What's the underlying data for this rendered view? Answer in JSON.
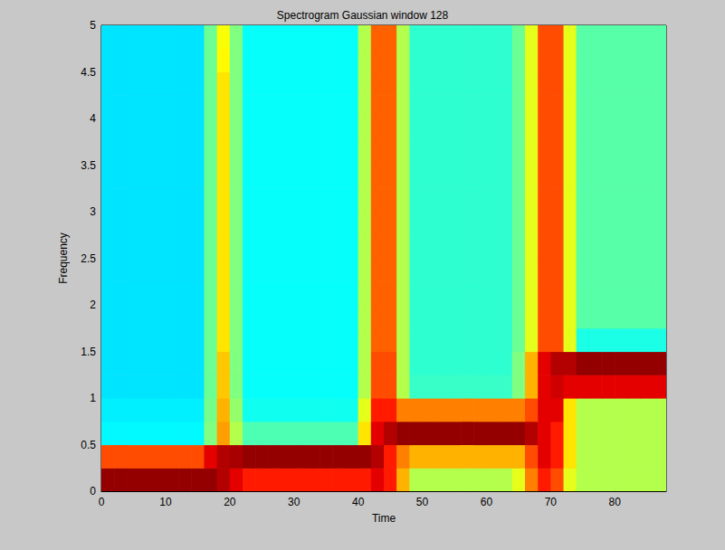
{
  "chart_data": {
    "type": "heatmap",
    "title": "Spectrogram Gaussian window 128",
    "xlabel": "Time",
    "ylabel": "Frequency",
    "x": [
      1,
      3,
      5,
      7,
      9,
      11,
      13,
      15,
      17,
      19,
      21,
      23,
      25,
      27,
      29,
      31,
      33,
      35,
      37,
      39,
      41,
      43,
      45,
      47,
      49,
      51,
      53,
      55,
      57,
      59,
      61,
      63,
      65,
      67,
      69,
      71,
      73,
      75,
      77,
      79,
      81,
      83,
      85,
      87
    ],
    "y": [
      0.125,
      0.375,
      0.625,
      0.875,
      1.125,
      1.375,
      1.625,
      1.875,
      2.125,
      2.375,
      2.625,
      2.875,
      3.125,
      3.375,
      3.625,
      3.875,
      4.125,
      4.375,
      4.625,
      4.875
    ],
    "z": [
      [
        9.8,
        9.8,
        9.8,
        9.8,
        9.8,
        9.8,
        9.8,
        9.8,
        9.8,
        9.5,
        9,
        8.5,
        8.5,
        8.5,
        8.5,
        8.5,
        8.5,
        8.5,
        8.5,
        8.5,
        8.5,
        9,
        8.5,
        7,
        5.5,
        5.5,
        5.5,
        5.5,
        5.5,
        5.5,
        5.5,
        5.5,
        6,
        7.5,
        8.5,
        8,
        6,
        5.5,
        5.5,
        5.5,
        5.5,
        5.5,
        5.5,
        5.5
      ],
      [
        8,
        8,
        8,
        8,
        8,
        8,
        8,
        8,
        9,
        9.5,
        9.6,
        9.8,
        9.8,
        9.8,
        9.8,
        9.8,
        9.8,
        9.8,
        9.8,
        9.8,
        9.8,
        9.5,
        8.5,
        7.5,
        7,
        7,
        7,
        7,
        7,
        7,
        7,
        7,
        7,
        8,
        9,
        8.5,
        6.5,
        5.5,
        5.5,
        5.5,
        5.5,
        5.5,
        5.5,
        5.5
      ],
      [
        3.7,
        3.7,
        3.7,
        3.7,
        3.7,
        3.7,
        3.7,
        3.7,
        5,
        7.2,
        5.5,
        4.5,
        4.5,
        4.5,
        4.5,
        4.5,
        4.5,
        4.5,
        4.5,
        4.5,
        6.5,
        9,
        9.5,
        9.8,
        9.8,
        9.8,
        9.8,
        9.8,
        9.8,
        9.8,
        9.8,
        9.8,
        9.8,
        9.5,
        9,
        8.5,
        6.5,
        5.5,
        5.5,
        5.5,
        5.5,
        5.5,
        5.5,
        5.5
      ],
      [
        3.6,
        3.6,
        3.6,
        3.6,
        3.6,
        3.6,
        3.6,
        3.6,
        4.9,
        7,
        5.2,
        3.9,
        3.9,
        3.9,
        3.9,
        3.9,
        3.9,
        3.9,
        3.9,
        3.9,
        6,
        8.5,
        8.5,
        7.5,
        7.5,
        7.5,
        7.5,
        7.5,
        7.5,
        7.5,
        7.5,
        7.5,
        7.5,
        8,
        9,
        9,
        6.5,
        5.5,
        5.5,
        5.5,
        5.5,
        5.5,
        5.5,
        5.5
      ],
      [
        3.5,
        3.5,
        3.5,
        3.5,
        3.5,
        3.5,
        3.5,
        3.5,
        4.8,
        6.8,
        5,
        3.8,
        3.8,
        3.8,
        3.8,
        3.8,
        3.8,
        3.8,
        3.8,
        3.8,
        5.5,
        8,
        8,
        5.5,
        4.3,
        4.3,
        4.3,
        4.3,
        4.3,
        4.3,
        4.3,
        4.3,
        5,
        7,
        9,
        9.2,
        9,
        9,
        9,
        9,
        9,
        9,
        9,
        9
      ],
      [
        3.5,
        3.5,
        3.5,
        3.5,
        3.5,
        3.5,
        3.5,
        3.5,
        4.8,
        6.8,
        5,
        3.8,
        3.8,
        3.8,
        3.8,
        3.8,
        3.8,
        3.8,
        3.8,
        3.8,
        5.5,
        8,
        8,
        5.5,
        4.2,
        4.2,
        4.2,
        4.2,
        4.2,
        4.2,
        4.2,
        4.2,
        5,
        7,
        9,
        9.5,
        9.5,
        9.8,
        9.8,
        9.8,
        9.8,
        9.8,
        9.8,
        9.8
      ],
      [
        3.5,
        3.5,
        3.5,
        3.5,
        3.5,
        3.5,
        3.5,
        3.5,
        4.8,
        6.5,
        5,
        3.8,
        3.8,
        3.8,
        3.8,
        3.8,
        3.8,
        3.8,
        3.8,
        3.8,
        5.5,
        7.8,
        7.8,
        5.5,
        4.2,
        4.2,
        4.2,
        4.2,
        4.2,
        4.2,
        4.2,
        4.2,
        4.8,
        6,
        8,
        8,
        6,
        4,
        4,
        4,
        4,
        4,
        4,
        4
      ],
      [
        3.5,
        3.5,
        3.5,
        3.5,
        3.5,
        3.5,
        3.5,
        3.5,
        4.8,
        6.5,
        5,
        3.8,
        3.8,
        3.8,
        3.8,
        3.8,
        3.8,
        3.8,
        3.8,
        3.8,
        5.5,
        7.8,
        7.8,
        5.5,
        4.2,
        4.2,
        4.2,
        4.2,
        4.2,
        4.2,
        4.2,
        4.2,
        4.8,
        6,
        8,
        8,
        6,
        4.6,
        4.6,
        4.6,
        4.6,
        4.6,
        4.6,
        4.6
      ],
      [
        3.5,
        3.5,
        3.5,
        3.5,
        3.5,
        3.5,
        3.5,
        3.5,
        4.8,
        6.5,
        5,
        3.8,
        3.8,
        3.8,
        3.8,
        3.8,
        3.8,
        3.8,
        3.8,
        3.8,
        5.5,
        7.8,
        7.8,
        5.5,
        4.2,
        4.2,
        4.2,
        4.2,
        4.2,
        4.2,
        4.2,
        4.2,
        4.8,
        6,
        8,
        8,
        6,
        4.6,
        4.6,
        4.6,
        4.6,
        4.6,
        4.6,
        4.6
      ],
      [
        3.5,
        3.5,
        3.5,
        3.5,
        3.5,
        3.5,
        3.5,
        3.5,
        4.8,
        6.5,
        5,
        3.8,
        3.8,
        3.8,
        3.8,
        3.8,
        3.8,
        3.8,
        3.8,
        3.8,
        5.5,
        7.8,
        7.8,
        5.5,
        4.2,
        4.2,
        4.2,
        4.2,
        4.2,
        4.2,
        4.2,
        4.2,
        4.8,
        6,
        8,
        8,
        6,
        4.6,
        4.6,
        4.6,
        4.6,
        4.6,
        4.6,
        4.6
      ],
      [
        3.5,
        3.5,
        3.5,
        3.5,
        3.5,
        3.5,
        3.5,
        3.5,
        4.8,
        6.5,
        5,
        3.8,
        3.8,
        3.8,
        3.8,
        3.8,
        3.8,
        3.8,
        3.8,
        3.8,
        5.5,
        7.8,
        7.8,
        5.5,
        4.2,
        4.2,
        4.2,
        4.2,
        4.2,
        4.2,
        4.2,
        4.2,
        4.8,
        6,
        8,
        8,
        6,
        4.6,
        4.6,
        4.6,
        4.6,
        4.6,
        4.6,
        4.6
      ],
      [
        3.5,
        3.5,
        3.5,
        3.5,
        3.5,
        3.5,
        3.5,
        3.5,
        4.8,
        6.5,
        5,
        3.8,
        3.8,
        3.8,
        3.8,
        3.8,
        3.8,
        3.8,
        3.8,
        3.8,
        5.5,
        7.8,
        7.8,
        5.5,
        4.2,
        4.2,
        4.2,
        4.2,
        4.2,
        4.2,
        4.2,
        4.2,
        4.8,
        6,
        8,
        8,
        6,
        4.6,
        4.6,
        4.6,
        4.6,
        4.6,
        4.6,
        4.6
      ],
      [
        3.5,
        3.5,
        3.5,
        3.5,
        3.5,
        3.5,
        3.5,
        3.5,
        4.8,
        6.5,
        5,
        3.8,
        3.8,
        3.8,
        3.8,
        3.8,
        3.8,
        3.8,
        3.8,
        3.8,
        5.5,
        7.8,
        7.8,
        5.5,
        4.2,
        4.2,
        4.2,
        4.2,
        4.2,
        4.2,
        4.2,
        4.2,
        4.8,
        6,
        8,
        8,
        6,
        4.6,
        4.6,
        4.6,
        4.6,
        4.6,
        4.6,
        4.6
      ],
      [
        3.5,
        3.5,
        3.5,
        3.5,
        3.5,
        3.5,
        3.5,
        3.5,
        4.8,
        6.5,
        5,
        3.8,
        3.8,
        3.8,
        3.8,
        3.8,
        3.8,
        3.8,
        3.8,
        3.8,
        5.5,
        7.8,
        7.8,
        5.5,
        4.2,
        4.2,
        4.2,
        4.2,
        4.2,
        4.2,
        4.2,
        4.2,
        4.8,
        6,
        8,
        8,
        6,
        4.6,
        4.6,
        4.6,
        4.6,
        4.6,
        4.6,
        4.6
      ],
      [
        3.5,
        3.5,
        3.5,
        3.5,
        3.5,
        3.5,
        3.5,
        3.5,
        4.8,
        6.5,
        5,
        3.8,
        3.8,
        3.8,
        3.8,
        3.8,
        3.8,
        3.8,
        3.8,
        3.8,
        5.5,
        7.8,
        7.8,
        5.5,
        4.2,
        4.2,
        4.2,
        4.2,
        4.2,
        4.2,
        4.2,
        4.2,
        4.8,
        6,
        8,
        8,
        6,
        4.6,
        4.6,
        4.6,
        4.6,
        4.6,
        4.6,
        4.6
      ],
      [
        3.5,
        3.5,
        3.5,
        3.5,
        3.5,
        3.5,
        3.5,
        3.5,
        4.8,
        6.5,
        5,
        3.8,
        3.8,
        3.8,
        3.8,
        3.8,
        3.8,
        3.8,
        3.8,
        3.8,
        5.5,
        7.8,
        7.8,
        5.5,
        4.2,
        4.2,
        4.2,
        4.2,
        4.2,
        4.2,
        4.2,
        4.2,
        4.8,
        6,
        8,
        8,
        6,
        4.6,
        4.6,
        4.6,
        4.6,
        4.6,
        4.6,
        4.6
      ],
      [
        3.5,
        3.5,
        3.5,
        3.5,
        3.5,
        3.5,
        3.5,
        3.5,
        4.8,
        6.5,
        5,
        3.8,
        3.8,
        3.8,
        3.8,
        3.8,
        3.8,
        3.8,
        3.8,
        3.8,
        5.5,
        7.8,
        7.8,
        5.5,
        4.2,
        4.2,
        4.2,
        4.2,
        4.2,
        4.2,
        4.2,
        4.2,
        4.8,
        6,
        8,
        8,
        6,
        4.6,
        4.6,
        4.6,
        4.6,
        4.6,
        4.6,
        4.6
      ],
      [
        3.5,
        3.5,
        3.5,
        3.5,
        3.5,
        3.5,
        3.5,
        3.5,
        4.8,
        6.5,
        5,
        3.8,
        3.8,
        3.8,
        3.8,
        3.8,
        3.8,
        3.8,
        3.8,
        3.8,
        5.5,
        7.8,
        7.8,
        5.5,
        4.2,
        4.2,
        4.2,
        4.2,
        4.2,
        4.2,
        4.2,
        4.2,
        4.8,
        6,
        8,
        8,
        6,
        4.6,
        4.6,
        4.6,
        4.6,
        4.6,
        4.6,
        4.6
      ],
      [
        3.5,
        3.5,
        3.5,
        3.5,
        3.5,
        3.5,
        3.5,
        3.5,
        4.8,
        6.3,
        5,
        3.8,
        3.8,
        3.8,
        3.8,
        3.8,
        3.8,
        3.8,
        3.8,
        3.8,
        5.5,
        7.8,
        7.8,
        5.5,
        4.2,
        4.2,
        4.2,
        4.2,
        4.2,
        4.2,
        4.2,
        4.2,
        4.8,
        6,
        8,
        8,
        6,
        4.6,
        4.6,
        4.6,
        4.6,
        4.6,
        4.6,
        4.6
      ],
      [
        3.5,
        3.5,
        3.5,
        3.5,
        3.5,
        3.5,
        3.5,
        3.5,
        4.8,
        6.2,
        5,
        3.8,
        3.8,
        3.8,
        3.8,
        3.8,
        3.8,
        3.8,
        3.8,
        3.8,
        5.5,
        7.8,
        7.8,
        5.5,
        4.2,
        4.2,
        4.2,
        4.2,
        4.2,
        4.2,
        4.2,
        4.2,
        4.8,
        6,
        8,
        8,
        6,
        4.6,
        4.6,
        4.6,
        4.6,
        4.6,
        4.6,
        4.6
      ]
    ],
    "zlim": [
      0,
      10
    ],
    "xlim": [
      0,
      88
    ],
    "xticks": [
      0,
      10,
      20,
      30,
      40,
      50,
      60,
      70,
      80
    ],
    "ylim": [
      0,
      5
    ],
    "yticks": [
      0,
      0.5,
      1,
      1.5,
      2,
      2.5,
      3,
      3.5,
      4,
      4.5,
      5
    ],
    "grid": false
  }
}
